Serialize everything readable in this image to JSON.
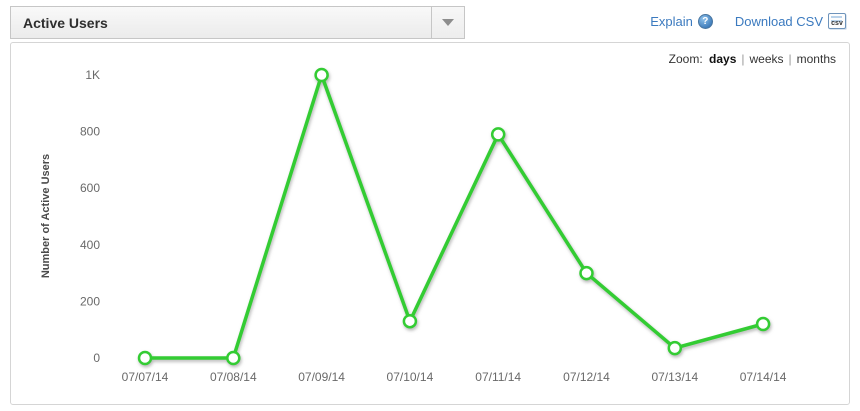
{
  "header": {
    "title": "Active Users",
    "explain_label": "Explain",
    "explain_icon_glyph": "?",
    "download_csv_label": "Download CSV",
    "csv_icon_text": "csv"
  },
  "toolbar": {
    "zoom_label": "Zoom:",
    "separator": "|",
    "options": [
      {
        "label": "days",
        "active": true
      },
      {
        "label": "weeks",
        "active": false
      },
      {
        "label": "months",
        "active": false
      }
    ]
  },
  "colors": {
    "line_green": "#33cc33",
    "link_blue": "#3b7abf"
  },
  "chart_data": {
    "type": "line",
    "title": "Active Users",
    "series_name": "Active Users",
    "x": [
      "07/07/14",
      "07/08/14",
      "07/09/14",
      "07/10/14",
      "07/11/14",
      "07/12/14",
      "07/13/14",
      "07/14/14"
    ],
    "values": [
      0,
      0,
      1000,
      130,
      790,
      300,
      35,
      120
    ],
    "xlabel": "",
    "ylabel": "Number of Active Users",
    "ylim": [
      0,
      1000
    ],
    "yticks": [
      {
        "label": "0",
        "value": 0
      },
      {
        "label": "200",
        "value": 200
      },
      {
        "label": "400",
        "value": 400
      },
      {
        "label": "600",
        "value": 600
      },
      {
        "label": "800",
        "value": 800
      },
      {
        "label": "1K",
        "value": 1000
      }
    ],
    "grid": false,
    "legend": "none",
    "marker": "open-circle"
  }
}
